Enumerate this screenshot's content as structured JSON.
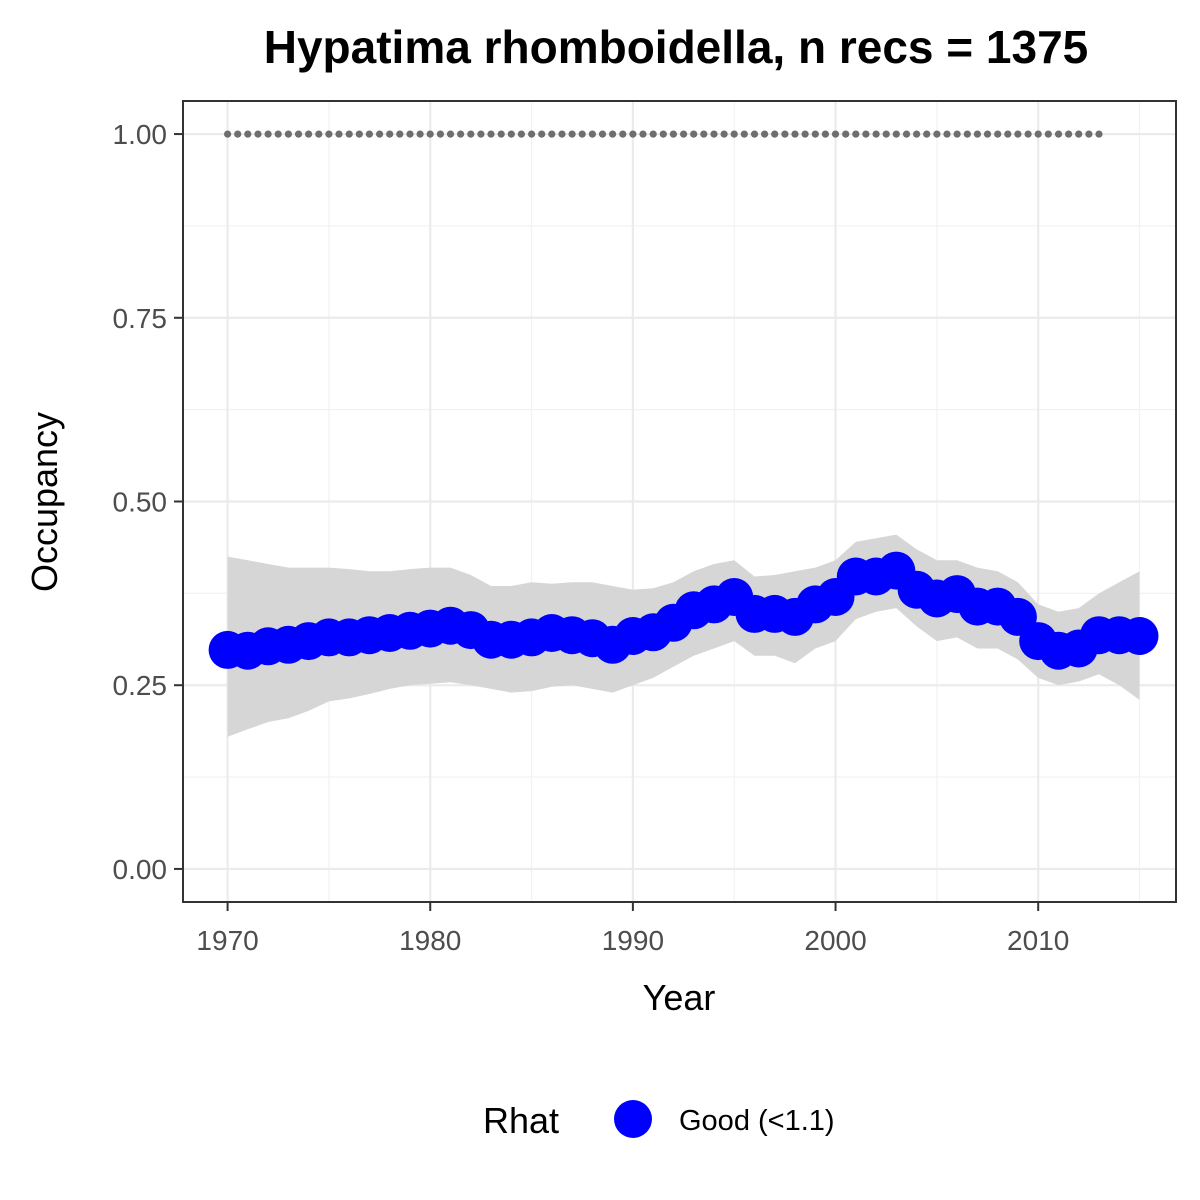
{
  "chart_data": {
    "type": "line",
    "title": "Hypatima rhomboidella, n recs = 1375",
    "xlabel": "Year",
    "ylabel": "Occupancy",
    "xlim": [
      1967.8,
      2016.8
    ],
    "ylim": [
      -0.045,
      1.045
    ],
    "x_ticks": [
      1970,
      1980,
      1990,
      2000,
      2010
    ],
    "x_tick_labels": [
      "1970",
      "1980",
      "1990",
      "2000",
      "2010"
    ],
    "y_ticks": [
      0,
      0.25,
      0.5,
      0.75,
      1.0
    ],
    "y_tick_labels": [
      "0.00",
      "0.25",
      "0.50",
      "0.75",
      "1.00"
    ],
    "grid": true,
    "x": [
      1970,
      1971,
      1972,
      1973,
      1974,
      1975,
      1976,
      1977,
      1978,
      1979,
      1980,
      1981,
      1982,
      1983,
      1984,
      1985,
      1986,
      1987,
      1988,
      1989,
      1990,
      1991,
      1992,
      1993,
      1994,
      1995,
      1996,
      1997,
      1998,
      1999,
      2000,
      2001,
      2002,
      2003,
      2004,
      2005,
      2006,
      2007,
      2008,
      2009,
      2010,
      2011,
      2012,
      2013,
      2014,
      2015
    ],
    "series": [
      {
        "name": "Good (<1.1)",
        "color": "#0000ff",
        "values": [
          0.298,
          0.297,
          0.303,
          0.305,
          0.31,
          0.315,
          0.315,
          0.318,
          0.321,
          0.324,
          0.327,
          0.331,
          0.325,
          0.312,
          0.312,
          0.315,
          0.321,
          0.318,
          0.314,
          0.305,
          0.317,
          0.322,
          0.335,
          0.352,
          0.36,
          0.37,
          0.347,
          0.347,
          0.343,
          0.36,
          0.37,
          0.398,
          0.398,
          0.406,
          0.38,
          0.368,
          0.374,
          0.357,
          0.357,
          0.343,
          0.31,
          0.297,
          0.3,
          0.318,
          0.318,
          0.317
        ]
      }
    ],
    "ci_band": {
      "color": "#d6d6d6",
      "upper": [
        0.425,
        0.42,
        0.415,
        0.41,
        0.41,
        0.41,
        0.408,
        0.405,
        0.405,
        0.408,
        0.41,
        0.41,
        0.4,
        0.385,
        0.385,
        0.39,
        0.388,
        0.39,
        0.39,
        0.385,
        0.38,
        0.382,
        0.39,
        0.405,
        0.415,
        0.42,
        0.398,
        0.4,
        0.405,
        0.41,
        0.42,
        0.445,
        0.45,
        0.455,
        0.435,
        0.42,
        0.42,
        0.41,
        0.405,
        0.39,
        0.36,
        0.35,
        0.355,
        0.375,
        0.39,
        0.405
      ],
      "lower": [
        0.18,
        0.19,
        0.2,
        0.205,
        0.215,
        0.228,
        0.232,
        0.238,
        0.245,
        0.25,
        0.252,
        0.254,
        0.25,
        0.245,
        0.24,
        0.242,
        0.248,
        0.25,
        0.245,
        0.24,
        0.25,
        0.26,
        0.275,
        0.29,
        0.3,
        0.31,
        0.29,
        0.29,
        0.28,
        0.3,
        0.31,
        0.34,
        0.35,
        0.355,
        0.33,
        0.31,
        0.315,
        0.3,
        0.3,
        0.285,
        0.26,
        0.25,
        0.255,
        0.265,
        0.25,
        0.23
      ]
    },
    "reference_line": {
      "y": 1.0,
      "x_start": 1970,
      "x_end": 2013,
      "color": "#6e6e6e",
      "style": "dotted"
    },
    "legend": {
      "title": "Rhat",
      "placement": "bottom",
      "items": [
        {
          "label": "Good (<1.1)",
          "color": "#0000ff"
        }
      ]
    }
  }
}
